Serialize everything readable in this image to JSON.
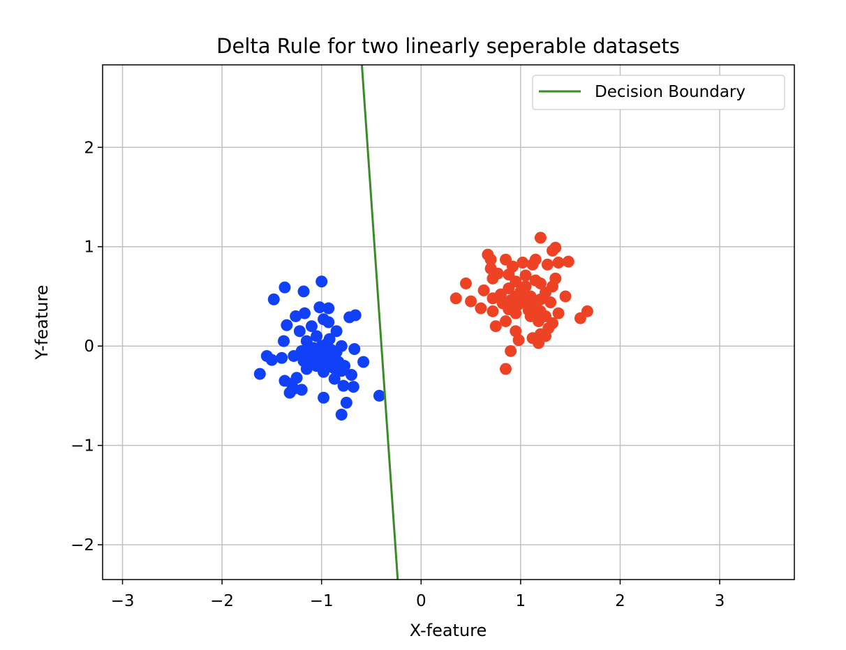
{
  "chart_data": {
    "type": "scatter",
    "title": "Delta Rule for two linearly seperable datasets",
    "xlabel": "X-feature",
    "ylabel": "Y-feature",
    "xlim": [
      -3.2,
      3.75
    ],
    "ylim": [
      -2.35,
      2.83
    ],
    "xticks": [
      -3,
      -2,
      -1,
      0,
      1,
      2,
      3
    ],
    "yticks": [
      -2,
      -1,
      0,
      1,
      2
    ],
    "tick_labels_x": [
      "−3",
      "−2",
      "−1",
      "0",
      "1",
      "2",
      "3"
    ],
    "tick_labels_y": [
      "−2",
      "−1",
      "0",
      "1",
      "2"
    ],
    "grid": true,
    "legend_position": "top-right",
    "colors": {
      "blue_points": "#1040f8",
      "red_points": "#ee4225",
      "boundary": "#3a8a28",
      "grid": "#c0c0c0",
      "axes": "#000000"
    },
    "series": [
      {
        "color": "#1040f8",
        "points": [
          [
            -1.0,
            0.65
          ],
          [
            -1.37,
            0.59
          ],
          [
            -1.18,
            0.55
          ],
          [
            -1.48,
            0.47
          ],
          [
            -1.02,
            0.39
          ],
          [
            -0.93,
            0.38
          ],
          [
            -1.17,
            0.33
          ],
          [
            -1.26,
            0.3
          ],
          [
            -0.66,
            0.31
          ],
          [
            -0.72,
            0.29
          ],
          [
            -0.98,
            0.27
          ],
          [
            -0.93,
            0.24
          ],
          [
            -1.35,
            0.21
          ],
          [
            -1.1,
            0.2
          ],
          [
            -1.22,
            0.15
          ],
          [
            -0.85,
            0.15
          ],
          [
            -1.05,
            0.1
          ],
          [
            -0.92,
            0.07
          ],
          [
            -1.38,
            0.05
          ],
          [
            -1.15,
            0.05
          ],
          [
            -0.95,
            0.02
          ],
          [
            -1.0,
            0.0
          ],
          [
            -0.8,
            0.0
          ],
          [
            -1.08,
            -0.02
          ],
          [
            -0.67,
            -0.03
          ],
          [
            -0.9,
            -0.04
          ],
          [
            -1.2,
            -0.05
          ],
          [
            -1.12,
            -0.06
          ],
          [
            -0.85,
            -0.06
          ],
          [
            -0.98,
            -0.08
          ],
          [
            -1.05,
            -0.1
          ],
          [
            -1.28,
            -0.1
          ],
          [
            -0.88,
            -0.1
          ],
          [
            -1.55,
            -0.1
          ],
          [
            -1.4,
            -0.12
          ],
          [
            -1.0,
            -0.13
          ],
          [
            -0.9,
            -0.13
          ],
          [
            -1.5,
            -0.14
          ],
          [
            -1.18,
            -0.15
          ],
          [
            -0.83,
            -0.16
          ],
          [
            -1.1,
            -0.17
          ],
          [
            -0.58,
            -0.16
          ],
          [
            -0.95,
            -0.18
          ],
          [
            -0.77,
            -0.2
          ],
          [
            -1.05,
            -0.2
          ],
          [
            -0.88,
            -0.22
          ],
          [
            -1.15,
            -0.23
          ],
          [
            -0.8,
            -0.25
          ],
          [
            -0.98,
            -0.26
          ],
          [
            -0.7,
            -0.29
          ],
          [
            -1.62,
            -0.28
          ],
          [
            -1.25,
            -0.32
          ],
          [
            -0.87,
            -0.33
          ],
          [
            -1.37,
            -0.35
          ],
          [
            -1.3,
            -0.38
          ],
          [
            -0.78,
            -0.4
          ],
          [
            -0.68,
            -0.41
          ],
          [
            -1.2,
            -0.44
          ],
          [
            -1.32,
            -0.47
          ],
          [
            -1.28,
            -0.43
          ],
          [
            -0.42,
            -0.5
          ],
          [
            -0.98,
            -0.52
          ],
          [
            -0.75,
            -0.57
          ],
          [
            -0.8,
            -0.69
          ]
        ]
      },
      {
        "color": "#ee4225",
        "points": [
          [
            1.2,
            1.09
          ],
          [
            1.35,
            0.99
          ],
          [
            1.32,
            0.96
          ],
          [
            0.67,
            0.92
          ],
          [
            0.7,
            0.87
          ],
          [
            0.85,
            0.87
          ],
          [
            1.15,
            0.87
          ],
          [
            1.48,
            0.85
          ],
          [
            1.02,
            0.84
          ],
          [
            1.38,
            0.84
          ],
          [
            1.12,
            0.82
          ],
          [
            1.27,
            0.82
          ],
          [
            0.92,
            0.8
          ],
          [
            0.7,
            0.78
          ],
          [
            0.77,
            0.73
          ],
          [
            0.88,
            0.72
          ],
          [
            1.05,
            0.71
          ],
          [
            0.72,
            0.68
          ],
          [
            1.35,
            0.68
          ],
          [
            1.15,
            0.66
          ],
          [
            0.95,
            0.65
          ],
          [
            1.2,
            0.63
          ],
          [
            0.45,
            0.63
          ],
          [
            1.32,
            0.6
          ],
          [
            1.05,
            0.6
          ],
          [
            0.88,
            0.58
          ],
          [
            0.63,
            0.56
          ],
          [
            1.0,
            0.55
          ],
          [
            1.25,
            0.54
          ],
          [
            0.8,
            0.52
          ],
          [
            0.95,
            0.5
          ],
          [
            1.1,
            0.5
          ],
          [
            1.45,
            0.5
          ],
          [
            0.72,
            0.48
          ],
          [
            0.35,
            0.48
          ],
          [
            1.2,
            0.47
          ],
          [
            0.9,
            0.46
          ],
          [
            1.05,
            0.45
          ],
          [
            0.5,
            0.45
          ],
          [
            1.3,
            0.44
          ],
          [
            0.82,
            0.43
          ],
          [
            0.98,
            0.42
          ],
          [
            1.15,
            0.4
          ],
          [
            0.6,
            0.38
          ],
          [
            0.88,
            0.37
          ],
          [
            1.08,
            0.36
          ],
          [
            1.2,
            0.35
          ],
          [
            0.72,
            0.35
          ],
          [
            1.67,
            0.35
          ],
          [
            0.95,
            0.33
          ],
          [
            1.38,
            0.33
          ],
          [
            1.1,
            0.3
          ],
          [
            1.25,
            0.3
          ],
          [
            1.6,
            0.28
          ],
          [
            0.85,
            0.25
          ],
          [
            1.18,
            0.25
          ],
          [
            1.32,
            0.23
          ],
          [
            0.75,
            0.2
          ],
          [
            1.28,
            0.18
          ],
          [
            0.95,
            0.15
          ],
          [
            1.2,
            0.12
          ],
          [
            1.25,
            0.1
          ],
          [
            1.12,
            0.08
          ],
          [
            0.98,
            0.06
          ],
          [
            1.18,
            0.03
          ],
          [
            0.9,
            -0.05
          ],
          [
            0.85,
            -0.23
          ]
        ]
      }
    ],
    "decision_boundary": {
      "name": "Decision Boundary",
      "color": "#3a8a28",
      "points": [
        [
          -0.595,
          2.83
        ],
        [
          -0.235,
          -2.35
        ]
      ]
    }
  }
}
